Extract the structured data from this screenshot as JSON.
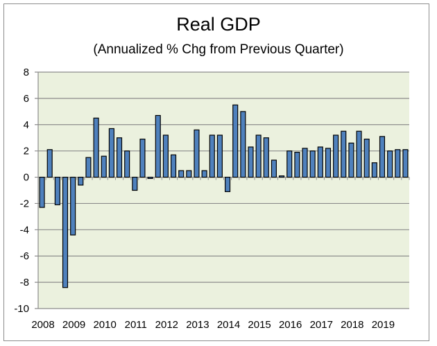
{
  "chart_data": {
    "type": "bar",
    "title": "Real GDP",
    "subtitle": "(Annualized % Chg from Previous Quarter)",
    "xlabel": "",
    "ylabel": "",
    "ylim": [
      -10,
      8
    ],
    "yticks": [
      -10,
      -8,
      -6,
      -4,
      -2,
      0,
      2,
      4,
      6,
      8
    ],
    "grid": true,
    "legend": "none",
    "year_labels": [
      "2008",
      "2009",
      "2010",
      "2011",
      "2012",
      "2013",
      "2014",
      "2015",
      "2016",
      "2017",
      "2018",
      "2019"
    ],
    "categories": [
      "2008Q1",
      "2008Q2",
      "2008Q3",
      "2008Q4",
      "2009Q1",
      "2009Q2",
      "2009Q3",
      "2009Q4",
      "2010Q1",
      "2010Q2",
      "2010Q3",
      "2010Q4",
      "2011Q1",
      "2011Q2",
      "2011Q3",
      "2011Q4",
      "2012Q1",
      "2012Q2",
      "2012Q3",
      "2012Q4",
      "2013Q1",
      "2013Q2",
      "2013Q3",
      "2013Q4",
      "2014Q1",
      "2014Q2",
      "2014Q3",
      "2014Q4",
      "2015Q1",
      "2015Q2",
      "2015Q3",
      "2015Q4",
      "2016Q1",
      "2016Q2",
      "2016Q3",
      "2016Q4",
      "2017Q1",
      "2017Q2",
      "2017Q3",
      "2017Q4",
      "2018Q1",
      "2018Q2",
      "2018Q3",
      "2018Q4",
      "2019Q1",
      "2019Q2",
      "2019Q3",
      "2019Q4"
    ],
    "values": [
      -2.3,
      2.1,
      -2.1,
      -8.4,
      -4.4,
      -0.6,
      1.5,
      4.5,
      1.6,
      3.7,
      3.0,
      2.0,
      -1.0,
      2.9,
      -0.1,
      4.7,
      3.2,
      1.7,
      0.5,
      0.5,
      3.6,
      0.5,
      3.2,
      3.2,
      -1.1,
      5.5,
      5.0,
      2.3,
      3.2,
      3.0,
      1.3,
      0.1,
      2.0,
      1.9,
      2.2,
      2.0,
      2.3,
      2.2,
      3.2,
      3.5,
      2.6,
      3.5,
      2.9,
      1.1,
      3.1,
      2.0,
      2.1,
      2.1
    ],
    "colors": {
      "bar": "#4f81bd",
      "bar_outline": "#000000",
      "plot_bg": "#ebf1de",
      "grid": "#8c8c8c"
    }
  }
}
